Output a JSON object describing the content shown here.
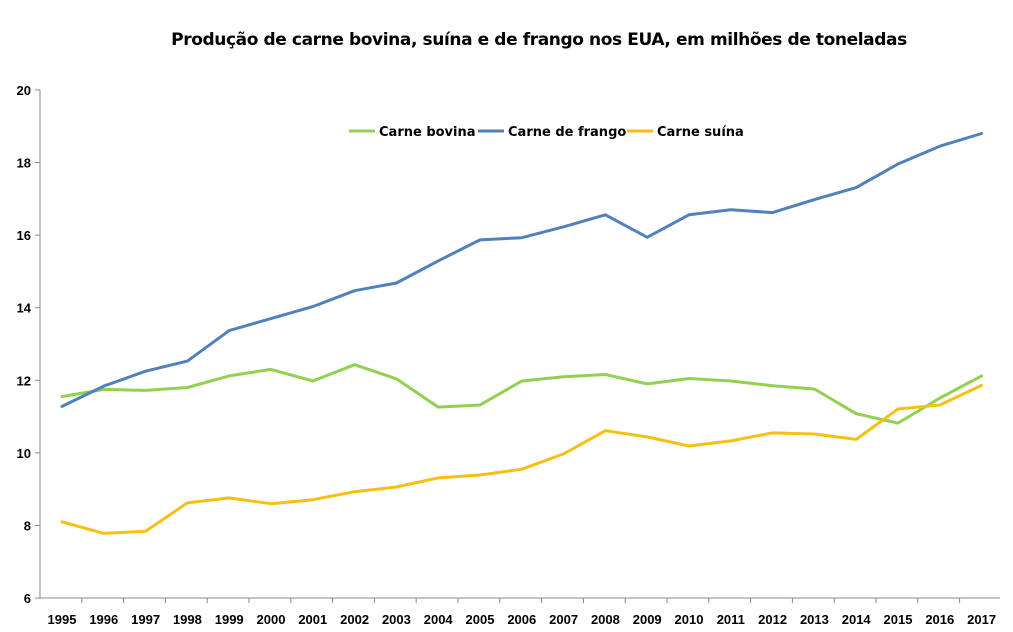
{
  "chart_data": {
    "type": "line",
    "title": "Produção de carne bovina, suína e de frango nos EUA, em milhões de toneladas",
    "x": [
      "1995",
      "1996",
      "1997",
      "1998",
      "1999",
      "2000",
      "2001",
      "2002",
      "2003",
      "2004",
      "2005",
      "2006",
      "2007",
      "2008",
      "2009",
      "2010",
      "2011",
      "2012",
      "2013",
      "2014",
      "2015",
      "2016",
      "2017"
    ],
    "ylim": [
      6,
      20
    ],
    "yticks": [
      "6",
      "8",
      "10",
      "12",
      "14",
      "16",
      "18",
      "20"
    ],
    "grid": false,
    "legend_position": "top-center",
    "series": [
      {
        "name": "Carne bovina",
        "color": "#92D050",
        "values": [
          11.55,
          11.75,
          11.72,
          11.8,
          12.12,
          12.3,
          11.98,
          12.43,
          12.04,
          11.26,
          11.32,
          11.98,
          12.1,
          12.16,
          11.9,
          12.05,
          11.98,
          11.85,
          11.76,
          11.08,
          10.82,
          11.51,
          12.12
        ]
      },
      {
        "name": "Carne de frango",
        "color": "#4F81BD",
        "values": [
          11.28,
          11.84,
          12.25,
          12.53,
          13.37,
          13.7,
          14.03,
          14.47,
          14.68,
          15.29,
          15.87,
          15.93,
          16.23,
          16.56,
          15.94,
          16.56,
          16.7,
          16.62,
          16.98,
          17.31,
          17.96,
          18.45,
          18.8
        ]
      },
      {
        "name": "Carne suína",
        "color": "#F8BF12",
        "values": [
          8.1,
          7.78,
          7.84,
          8.62,
          8.76,
          8.6,
          8.71,
          8.93,
          9.06,
          9.31,
          9.39,
          9.55,
          9.97,
          10.61,
          10.44,
          10.19,
          10.33,
          10.55,
          10.52,
          10.37,
          11.21,
          11.32,
          11.86
        ]
      }
    ]
  }
}
